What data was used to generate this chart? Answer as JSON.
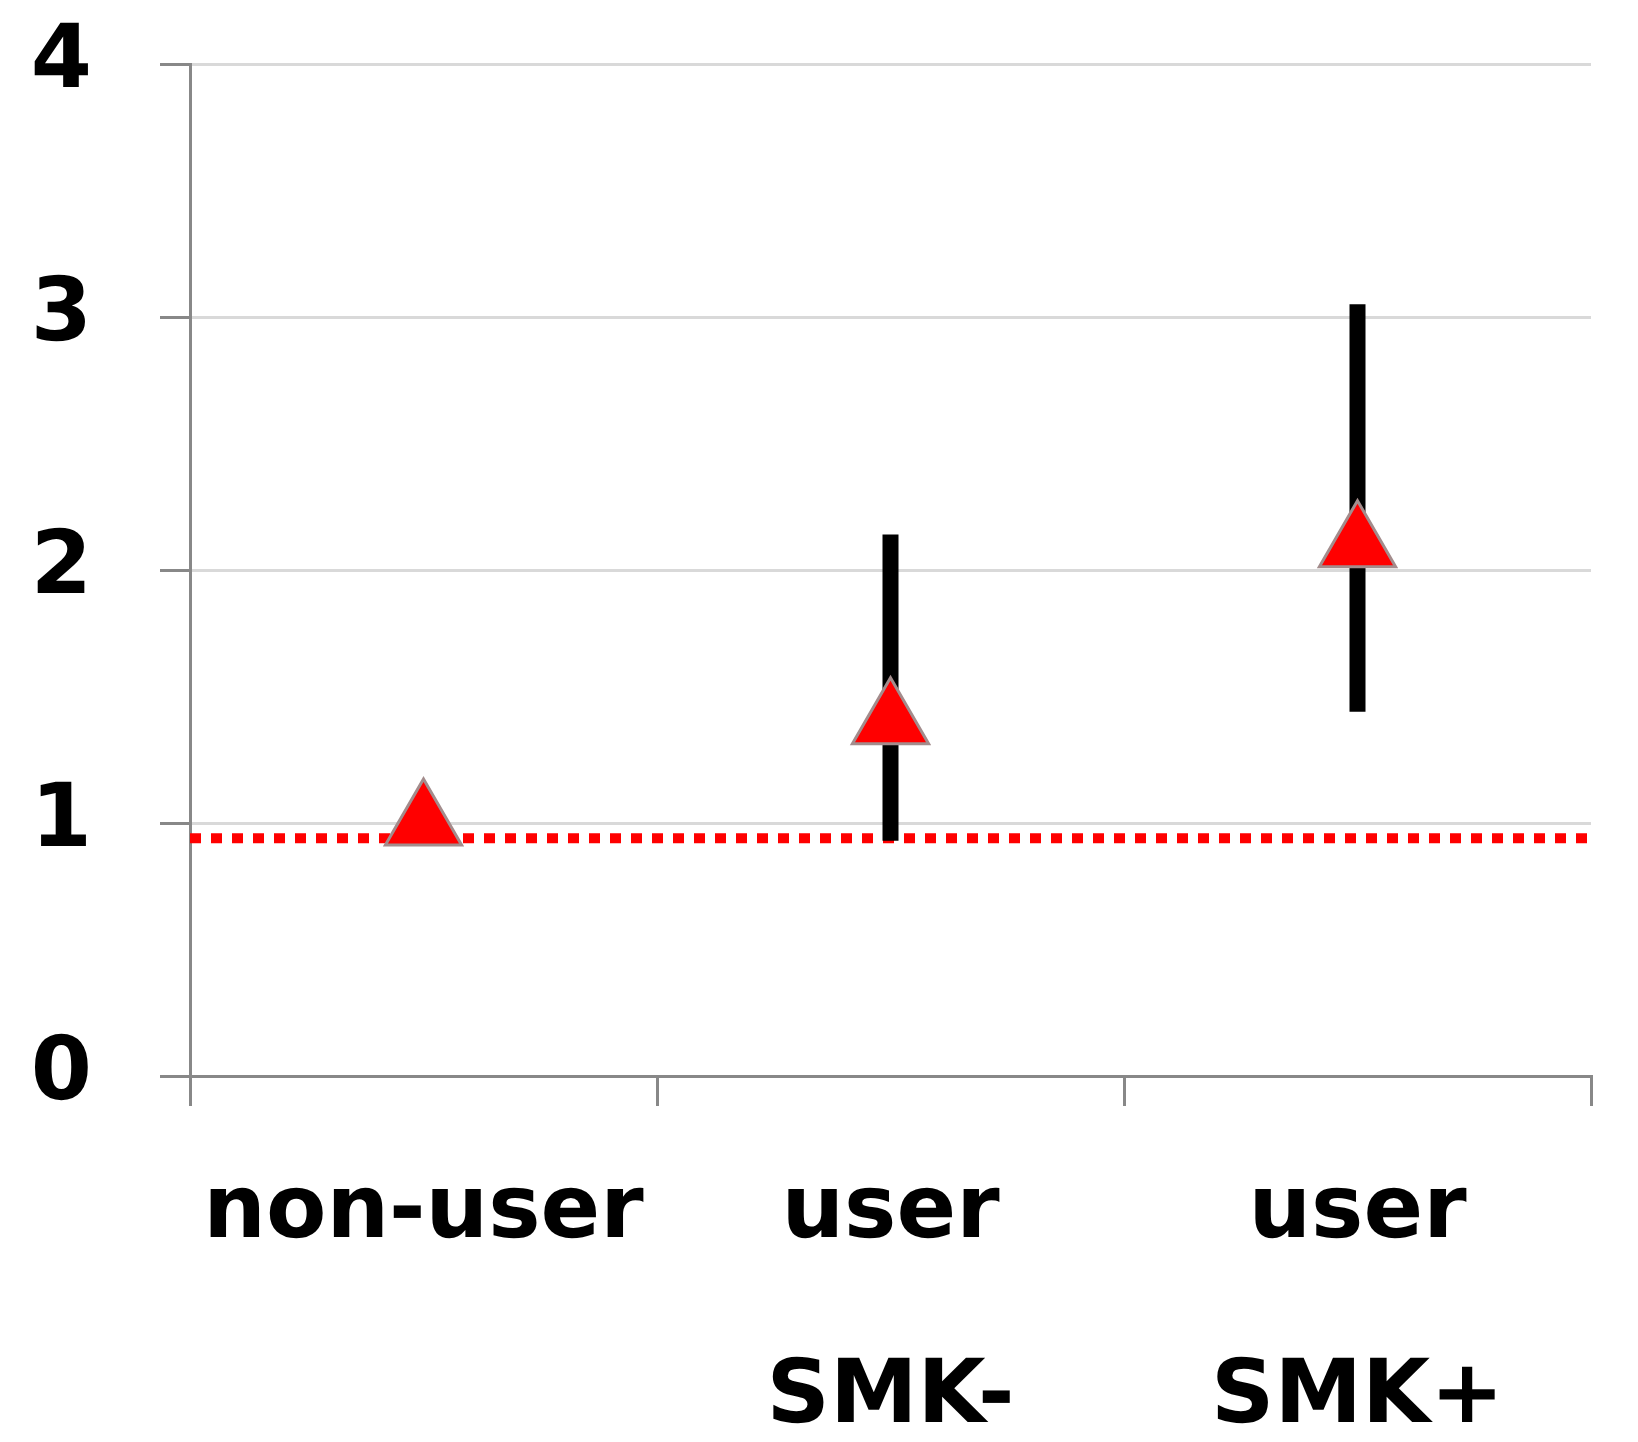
{
  "chart_data": {
    "type": "scatter",
    "categories": [
      "non-user",
      "user\nSMK-",
      "user\nSMK+"
    ],
    "series": [
      {
        "color": "#ff0000",
        "values": [
          1.0,
          1.4,
          2.1
        ],
        "errors": [
          null,
          [
            0.93,
            2.14
          ],
          [
            1.44,
            3.05
          ]
        ]
      }
    ],
    "marker": "triangle",
    "ylim": [
      0,
      4
    ],
    "yticks": [
      0,
      1,
      2,
      3,
      4
    ],
    "grid": "y",
    "ref_lines": [
      {
        "axis": "y",
        "value": 0.94,
        "color": "#ff0000",
        "line_style": "dotted"
      }
    ]
  }
}
